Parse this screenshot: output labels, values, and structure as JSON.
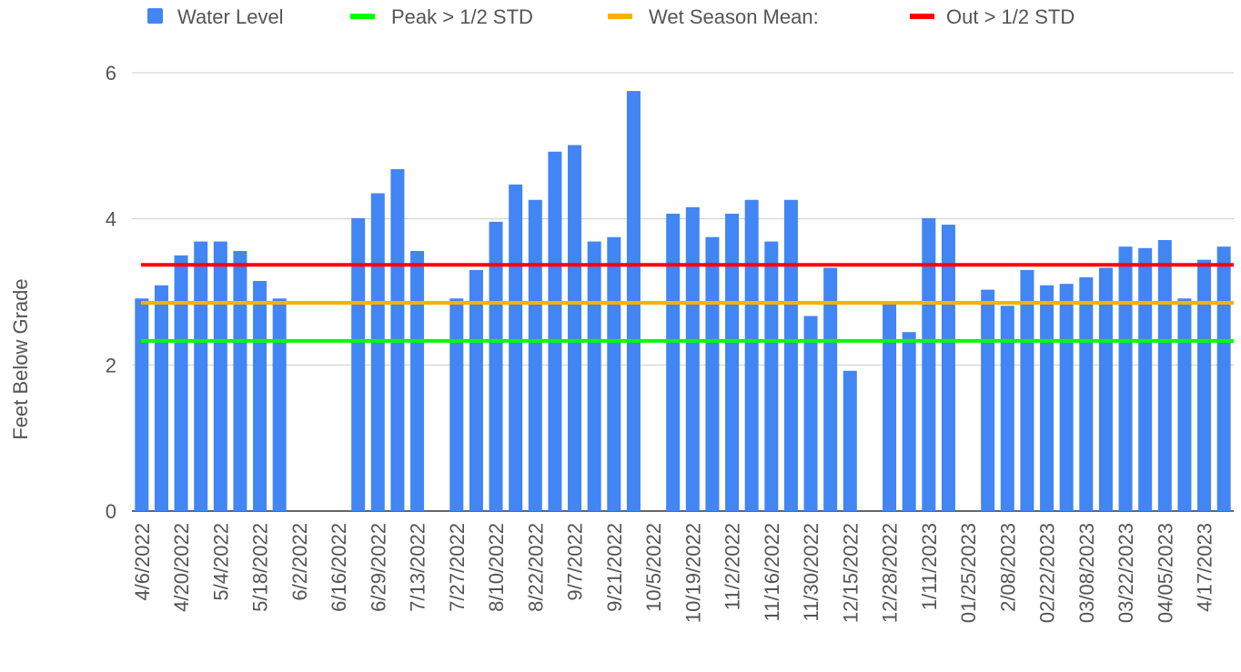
{
  "chart_data": {
    "type": "bar",
    "y_label": "Feet Below Grade",
    "categories": [
      "4/6/2022",
      null,
      "4/20/2022",
      null,
      "5/4/2022",
      null,
      "5/18/2022",
      null,
      "6/2/2022",
      null,
      "6/16/2022",
      null,
      "6/29/2022",
      null,
      "7/13/2022",
      null,
      "7/27/2022",
      null,
      "8/10/2022",
      null,
      "8/22/2022",
      null,
      "9/7/2022",
      null,
      "9/21/2022",
      null,
      "10/5/2022",
      null,
      "10/19/2022",
      null,
      "11/2/2022",
      null,
      "11/16/2022",
      null,
      "11/30/2022",
      null,
      "12/15/2022",
      null,
      "12/28/2022",
      null,
      "1/11/2023",
      null,
      "01/25/2023",
      null,
      "2/08/2023",
      null,
      "02/22/2023",
      null,
      "03/08/2023",
      null,
      "03/22/2023",
      null,
      "04/05/2023",
      null,
      "4/17/2023",
      null
    ],
    "series": [
      {
        "name": "Water Level",
        "color": "#4285f4",
        "values": [
          2.91,
          3.09,
          3.5,
          3.69,
          3.69,
          3.56,
          3.15,
          2.91,
          null,
          null,
          null,
          4.01,
          4.35,
          4.68,
          3.56,
          null,
          2.91,
          3.3,
          3.96,
          4.47,
          4.26,
          4.92,
          5.01,
          3.69,
          3.75,
          5.75,
          null,
          4.07,
          4.16,
          3.75,
          4.07,
          4.26,
          3.69,
          4.26,
          2.67,
          3.33,
          1.92,
          null,
          2.86,
          2.45,
          4.01,
          3.92,
          null,
          3.03,
          2.81,
          3.3,
          3.09,
          3.11,
          3.2,
          3.33,
          3.62,
          3.6,
          3.71,
          2.91,
          3.44,
          3.62
        ]
      }
    ],
    "reference_lines": [
      {
        "name": "Peak > 1/2 STD",
        "color": "#00ff00",
        "value": 2.33
      },
      {
        "name": "Wet Season Mean:",
        "color": "#f9b100",
        "value": 2.85
      },
      {
        "name": "Out > 1/2 STD",
        "color": "#ff0000",
        "value": 3.37
      }
    ],
    "ylim": [
      0,
      6
    ],
    "yticks": [
      0,
      2,
      4,
      6
    ],
    "grid": true
  }
}
